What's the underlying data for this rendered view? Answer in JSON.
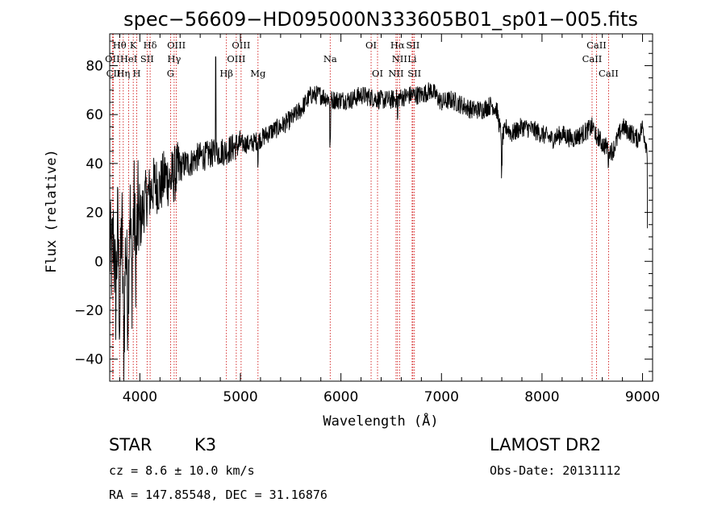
{
  "chart_data": {
    "type": "line",
    "title": "spec−56609−HD095000N333605B01_sp01−005.fits",
    "xlabel": "Wavelength (Å)",
    "ylabel": "Flux (relative)",
    "xlim": [
      3700,
      9100
    ],
    "ylim": [
      -49,
      93
    ],
    "x_ticks": [
      4000,
      5000,
      6000,
      7000,
      8000,
      9000
    ],
    "y_ticks": [
      -40,
      -20,
      0,
      20,
      40,
      60,
      80
    ],
    "y_tick_labels": [
      "−40",
      "−20",
      "0",
      "20",
      "40",
      "60",
      "80"
    ],
    "grid": false,
    "series": [
      {
        "x": [
          3700,
          3720,
          3740,
          3760,
          3780,
          3800,
          3820,
          3840,
          3860,
          3880,
          3900,
          3920,
          3940,
          3960,
          3980,
          4000,
          4050,
          4100,
          4150,
          4200,
          4250,
          4300,
          4350,
          4400,
          4450,
          4500,
          4550,
          4600,
          4650,
          4700,
          4750,
          4800,
          4850,
          4900,
          4950,
          5000,
          5100,
          5200,
          5300,
          5400,
          5500,
          5600,
          5700,
          5800,
          5900,
          6000,
          6100,
          6200,
          6300,
          6400,
          6500,
          6600,
          6700,
          6800,
          6900,
          7000,
          7100,
          7200,
          7300,
          7400,
          7500,
          7550,
          7600,
          7650,
          7700,
          7800,
          7900,
          8000,
          8100,
          8200,
          8300,
          8400,
          8500,
          8600,
          8700,
          8800,
          8900,
          8950,
          9000,
          9050,
          9100
        ],
        "y": [
          5,
          0,
          10,
          -15,
          15,
          -25,
          20,
          -35,
          10,
          -20,
          25,
          -10,
          25,
          0,
          20,
          15,
          25,
          28,
          32,
          30,
          35,
          33,
          36,
          38,
          40,
          40,
          42,
          43,
          43,
          44,
          44,
          45,
          45,
          46,
          47,
          48,
          48,
          50,
          53,
          55,
          58,
          62,
          68,
          68,
          66,
          66,
          66,
          68,
          67,
          66,
          66,
          67,
          68,
          68,
          70,
          65,
          66,
          64,
          62,
          62,
          64,
          62,
          50,
          55,
          52,
          55,
          54,
          52,
          50,
          52,
          50,
          52,
          55,
          48,
          45,
          55,
          52,
          50,
          55,
          45,
          28
        ]
      }
    ],
    "spectral_lines": [
      {
        "name": "O II",
        "label": "OII",
        "x": 3727,
        "row": 1
      },
      {
        "name": "C II",
        "label": "CII",
        "x": 3737,
        "row": 2
      },
      {
        "name": "H theta",
        "label": "Hθ",
        "x": 3798,
        "row": 0
      },
      {
        "name": "H eta",
        "label": "Hη",
        "x": 3835,
        "row": 2
      },
      {
        "name": "He I",
        "label": "HeI",
        "x": 3889,
        "row": 1
      },
      {
        "name": "K",
        "label": "K",
        "x": 3934,
        "row": 0
      },
      {
        "name": "H",
        "label": "H",
        "x": 3969,
        "row": 2
      },
      {
        "name": "S II",
        "label": "SII",
        "x": 4072,
        "row": 1
      },
      {
        "name": "H delta",
        "label": "Hδ",
        "x": 4102,
        "row": 0
      },
      {
        "name": "G",
        "label": "G",
        "x": 4305,
        "row": 2
      },
      {
        "name": "H gamma",
        "label": "Hγ",
        "x": 4341,
        "row": 1
      },
      {
        "name": "O III 4363",
        "label": "OIII",
        "x": 4363,
        "row": 0
      },
      {
        "name": "H beta",
        "label": "Hβ",
        "x": 4861,
        "row": 2
      },
      {
        "name": "O III 4959",
        "label": "OIII",
        "x": 4959,
        "row": 1
      },
      {
        "name": "O III 5007",
        "label": "OIII",
        "x": 5007,
        "row": 0
      },
      {
        "name": "Mg",
        "label": "Mg",
        "x": 5175,
        "row": 2
      },
      {
        "name": "Na",
        "label": "Na",
        "x": 5893,
        "row": 1
      },
      {
        "name": "O I 6300",
        "label": "OI",
        "x": 6300,
        "row": 0
      },
      {
        "name": "O I 6364",
        "label": "OI",
        "x": 6364,
        "row": 2
      },
      {
        "name": "N II 6548",
        "label": "NII",
        "x": 6548,
        "row": 2
      },
      {
        "name": "H alpha",
        "label": "Hα",
        "x": 6563,
        "row": 0
      },
      {
        "name": "N II 6583",
        "label": "NII",
        "x": 6583,
        "row": 1
      },
      {
        "name": "S II 6716",
        "label": "SII",
        "x": 6716,
        "row": 0
      },
      {
        "name": "Li",
        "label": "Li",
        "x": 6708,
        "row": 1
      },
      {
        "name": "S II 6731",
        "label": "SII",
        "x": 6731,
        "row": 2
      },
      {
        "name": "Ca II 8498",
        "label": "CaII",
        "x": 8498,
        "row": 1
      },
      {
        "name": "Ca II 8542",
        "label": "CaII",
        "x": 8542,
        "row": 0
      },
      {
        "name": "Ca II 8662",
        "label": "CaII",
        "x": 8662,
        "row": 2
      }
    ],
    "line_color": "#000000",
    "marker_color": "#cc0000"
  },
  "info": {
    "object_class": "STAR",
    "subclass": "K3",
    "survey": "LAMOST DR2",
    "redshift_text": "cz = 8.6 ± 10.0 km/s",
    "obs_date_text": "Obs-Date: 20131112",
    "coords_text": "RA = 147.85548, DEC =  31.16876"
  }
}
